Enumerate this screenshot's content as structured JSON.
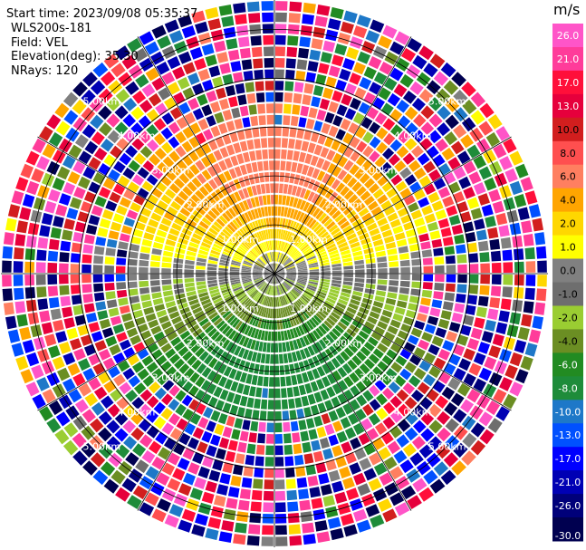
{
  "info": {
    "start_time": "Start time: 2023/09/08 05:35:37",
    "instrument": "WLS200s-181",
    "field": "Field: VEL",
    "elevation": "Elevation(deg): 35.30",
    "nrays": "NRays: 120"
  },
  "chart_data": {
    "type": "heatmap",
    "projection": "polar-ppi",
    "field": "VEL",
    "units": "m/s",
    "nrays": 120,
    "elevation_deg": 35.3,
    "max_range_km": 5.6,
    "range_ring_labels": [
      "1.00km",
      "2.00km",
      "3.00km",
      "4.00km",
      "5.00km"
    ],
    "range_rings_km": [
      1,
      2,
      3,
      4,
      5
    ],
    "grid": true,
    "legend_placement": "right",
    "colorbar": {
      "unit": "m/s",
      "ticks": [
        "26.0",
        "21.0",
        "17.0",
        "13.0",
        "10.0",
        "8.0",
        "6.0",
        "4.0",
        "2.0",
        "1.0",
        "0.0",
        "-1.0",
        "-2.0",
        "-4.0",
        "-6.0",
        "-8.0",
        "-10.0",
        "-13.0",
        "-17.0",
        "-21.0",
        "-26.0",
        "-30.0"
      ],
      "bin_edges": [
        30,
        26,
        21,
        17,
        13,
        10,
        8,
        6,
        4,
        2,
        1,
        0,
        -1,
        -2,
        -4,
        -6,
        -8,
        -10,
        -13,
        -17,
        -21,
        -26,
        -30
      ],
      "colors": [
        "#ff55c8",
        "#ff3c9a",
        "#ff0f3a",
        "#e6003c",
        "#d21e1e",
        "#ff4f4f",
        "#ff7f60",
        "#ffa500",
        "#ffd700",
        "#ffff00",
        "#808080",
        "#6e6e6e",
        "#9acd32",
        "#6b8e23",
        "#228b22",
        "#1e8c3a",
        "#1e78c8",
        "#0050ff",
        "#0000ff",
        "#0000b4",
        "#00007a",
        "#000050"
      ]
    },
    "velocity_pattern": {
      "receding_max_mps": 7.0,
      "approaching_max_mps": -7.5,
      "receding_center_azimuth_deg": 0,
      "clean_signal_range_km": 3.0,
      "noise_range_km": 3.8
    }
  }
}
